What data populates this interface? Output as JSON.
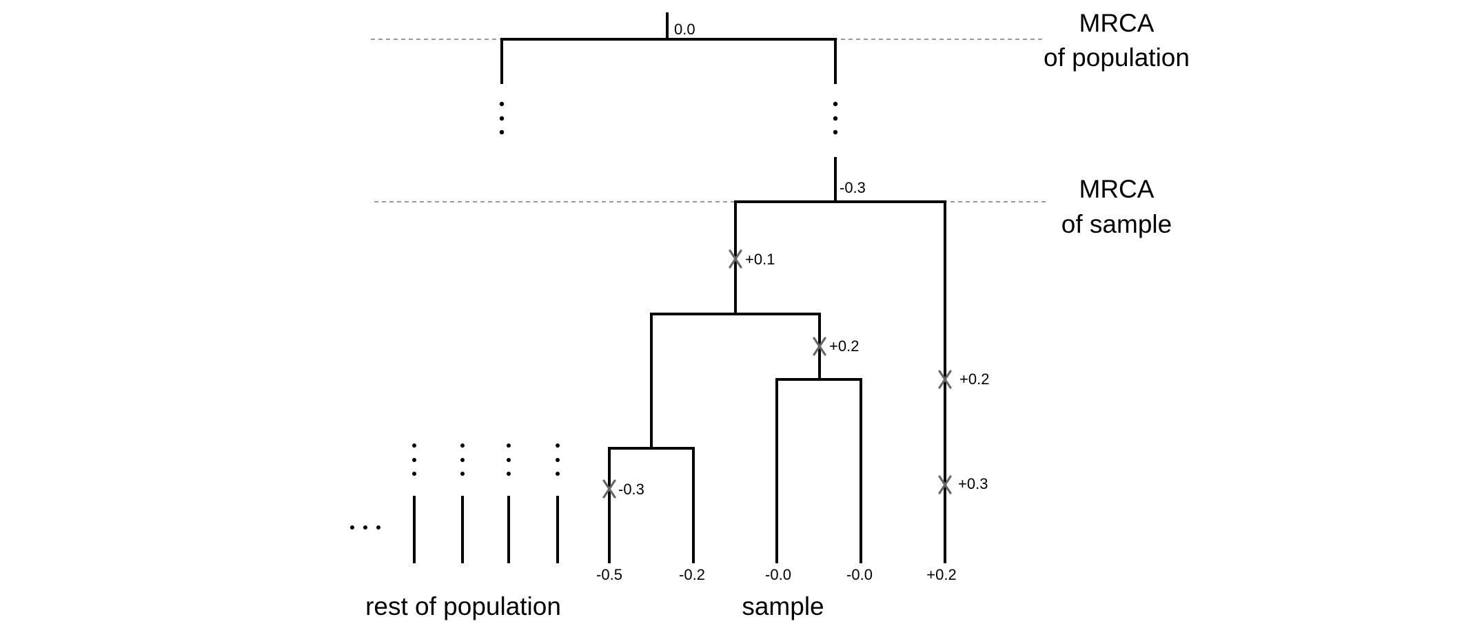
{
  "mrca_population": {
    "line1": "MRCA",
    "line2": "of population",
    "value": "0.0"
  },
  "mrca_sample": {
    "line1": "MRCA",
    "line2": "of sample",
    "value": "-0.3"
  },
  "mutations": {
    "upper_left_branch": "+0.1",
    "inner_clade_branch": "+0.2",
    "right_branch_upper": "+0.2",
    "right_branch_lower": "+0.3",
    "leftmost_leaf_branch": "-0.3"
  },
  "leaf_values": [
    "-0.5",
    "-0.2",
    "-0.0",
    "-0.0",
    "+0.2"
  ],
  "group_labels": {
    "rest": "rest of population",
    "sample": "sample"
  },
  "colors": {
    "branch": "#000000",
    "guide_line": "#777777",
    "mutation_marker": "#666666"
  }
}
